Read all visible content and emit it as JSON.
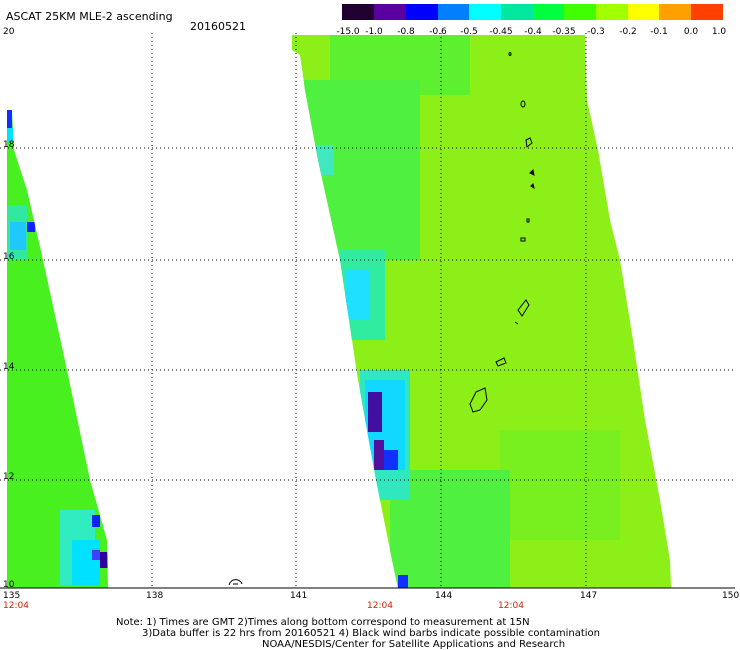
{
  "header": {
    "title": "ASCAT 25KM MLE-2 ascending",
    "date": "20160521"
  },
  "colorbar": {
    "labels": [
      "-15.0",
      "-1.0",
      "-0.8",
      "-0.6",
      "-0.5",
      "-0.45",
      "-0.4",
      "-0.35",
      "-0.3",
      "-0.2",
      "-0.1",
      "0.0",
      "1.0"
    ],
    "colors": [
      "#200030",
      "#5a00a0",
      "#0000ff",
      "#0080ff",
      "#00ffff",
      "#00e8a0",
      "#00ff40",
      "#40ff00",
      "#a0ff00",
      "#ffff00",
      "#ffa000",
      "#ff4000"
    ]
  },
  "map": {
    "lon_labels": [
      "135",
      "138",
      "141",
      "144",
      "147",
      "150"
    ],
    "lat_labels": [
      "20",
      "18",
      "16",
      "14",
      "12",
      "10"
    ],
    "time_labels": [
      "12:04",
      "12:04",
      "12:04"
    ]
  },
  "footer": {
    "line1": "Note: 1) Times are GMT 2)Times along bottom correspond to measurement at 15N",
    "line2": "3)Data buffer is 22 hrs from 20160521 4) Black wind barbs indicate possible contamination",
    "line3": "NOAA/NESDIS/Center for Satellite Applications and Research"
  }
}
